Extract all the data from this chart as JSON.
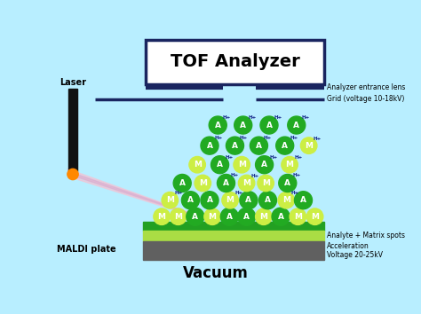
{
  "title": "TOF Analyzer",
  "vacuum_label": "Vacuum",
  "laser_label": "Laser",
  "maldi_label": "MALDI plate",
  "label_entrance": "Analyzer entrance lens",
  "label_grid": "Grid (voltage 10-18kV)",
  "label_analyte": "Analyte + Matrix spots",
  "label_accel": "Acceleration\nVoltage 20-25kV",
  "bg_color": "#b8eeff",
  "tof_box_edge": "#1a2560",
  "tof_box_face": "white",
  "laser_color": "#111111",
  "laser_dot_color": "#ff8800",
  "grid_line_color": "#1a2560",
  "plate_dark_green": "#22a022",
  "plate_light_green": "#aadd44",
  "plate_gray": "#606060",
  "dark_green": "#22aa22",
  "light_green": "#ccee44",
  "beam_color": "#ffbbcc",
  "beam_purple": "#ddaacc"
}
